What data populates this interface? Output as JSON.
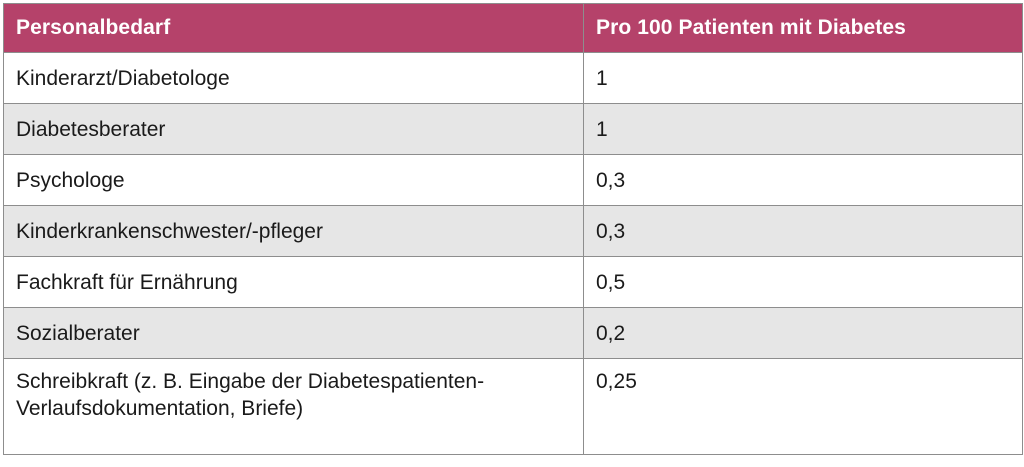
{
  "table": {
    "headers": [
      "Personalbedarf",
      "Pro 100 Patienten mit Diabetes"
    ],
    "rows": [
      {
        "role": "Kinderarzt/Diabetologe",
        "value": "1"
      },
      {
        "role": "Diabetesberater",
        "value": "1"
      },
      {
        "role": "Psychologe",
        "value": "0,3"
      },
      {
        "role": "Kinderkrankenschwester/-pfleger",
        "value": "0,3"
      },
      {
        "role": "Fachkraft für Ernährung",
        "value": "0,5"
      },
      {
        "role": "Sozialberater",
        "value": "0,2"
      },
      {
        "role": "Schreibkraft (z. B. Eingabe der Diabetespatienten-\nVerlaufsdokumentation, Briefe)",
        "value": "0,25"
      }
    ]
  },
  "colors": {
    "header_bg": "#b5426a",
    "header_text": "#ffffff",
    "alt_row_bg": "#e6e6e6",
    "border": "#8d8d8d"
  }
}
